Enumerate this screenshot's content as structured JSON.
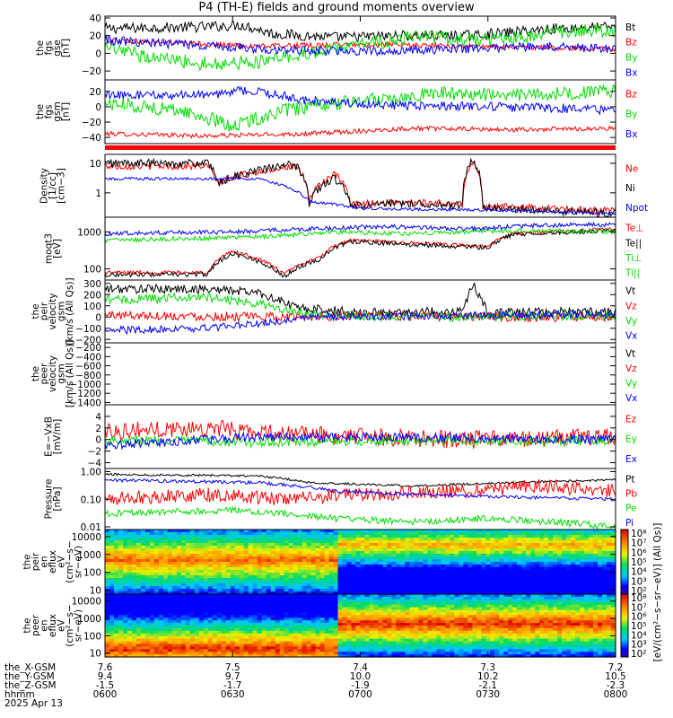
{
  "title": "P4 (TH-E) fields and ground moments overview",
  "colors": {
    "black": "#000000",
    "red": "#ff0000",
    "green": "#00dd00",
    "blue": "#0000ff"
  },
  "chart_data": {
    "type": "multi-panel time series",
    "xaxis": {
      "ticks": [
        "0600",
        "0630",
        "0700",
        "0730",
        "0800"
      ],
      "rows": [
        {
          "label": "the_X-GSM",
          "values": [
            "7.6",
            "7.5",
            "7.4",
            "7.3",
            "7.2"
          ]
        },
        {
          "label": "the_Y-GSM",
          "values": [
            "9.4",
            "9.7",
            "10.0",
            "10.2",
            "10.5"
          ]
        },
        {
          "label": "the_Z-GSM",
          "values": [
            "-1.5",
            "-1.7",
            "-1.9",
            "-2.1",
            "-2.3"
          ]
        },
        {
          "label": "hhmm",
          "values": [
            "0600",
            "0630",
            "0700",
            "0730",
            "0800"
          ]
        }
      ],
      "date": "2025 Apr 13"
    },
    "panels": [
      {
        "ylabel": [
          "the",
          "fgs",
          "gse",
          "[nT]"
        ],
        "ylim": [
          -30,
          42
        ],
        "scale": "linear",
        "ticks": [
          "40",
          "20",
          "0",
          "−20"
        ],
        "tick_values": [
          40,
          20,
          0,
          -20
        ],
        "legend": [
          {
            "text": "Bt",
            "color": "black"
          },
          {
            "text": "Bz",
            "color": "red"
          },
          {
            "text": "By",
            "color": "green"
          },
          {
            "text": "Bx",
            "color": "blue"
          }
        ]
      },
      {
        "ylabel": [
          "the",
          "fgs",
          "gsm",
          "[nT]"
        ],
        "ylim": [
          -48,
          35
        ],
        "scale": "linear",
        "ticks": [
          "20",
          "0",
          "−20",
          "−40"
        ],
        "tick_values": [
          20,
          0,
          -20,
          -40
        ],
        "legend": [
          {
            "text": "Bz",
            "color": "red"
          },
          {
            "text": "By",
            "color": "green"
          },
          {
            "text": "Bx",
            "color": "blue"
          }
        ]
      },
      {
        "ylabel": [
          "Density",
          "[1/cc]",
          "[cm−3]"
        ],
        "ylim": [
          0.15,
          20
        ],
        "scale": "log",
        "ticks": [
          "10",
          "1"
        ],
        "tick_values": [
          10,
          1
        ],
        "legend": [
          {
            "text": "Ne",
            "color": "red"
          },
          {
            "text": "Ni",
            "color": "black"
          },
          {
            "text": "Npot",
            "color": "blue"
          }
        ]
      },
      {
        "ylabel": [
          "moqt3",
          "[eV]"
        ],
        "ylim": [
          50,
          2500
        ],
        "scale": "log",
        "ticks": [
          "1000",
          "100"
        ],
        "tick_values": [
          1000,
          100
        ],
        "legend": [
          {
            "text": "Te⊥",
            "color": "red"
          },
          {
            "text": "Te||",
            "color": "black"
          },
          {
            "text": "Ti⊥",
            "color": "green"
          },
          {
            "text": "Ti||",
            "color": "green"
          }
        ]
      },
      {
        "ylabel": [
          "the",
          "peir",
          "velocity",
          "gsm",
          "[km/s (All Qs)]"
        ],
        "ylim": [
          -230,
          330
        ],
        "scale": "linear",
        "ticks": [
          "300",
          "200",
          "100",
          "0",
          "−100",
          "−200"
        ],
        "tick_values": [
          300,
          200,
          100,
          0,
          -100,
          -200
        ],
        "legend": [
          {
            "text": "Vt",
            "color": "black"
          },
          {
            "text": "Vz",
            "color": "red"
          },
          {
            "text": "Vy",
            "color": "green"
          },
          {
            "text": "Vx",
            "color": "blue"
          }
        ]
      },
      {
        "ylabel": [
          "the",
          "peer",
          "velocity",
          "gsm",
          "[km/s (All Qs)]"
        ],
        "ylim": [
          -1450,
          -100
        ],
        "scale": "linear",
        "ticks": [
          "−200",
          "−400",
          "−600",
          "−800",
          "−1000",
          "−1200",
          "−1400"
        ],
        "tick_values": [
          -200,
          -400,
          -600,
          -800,
          -1000,
          -1200,
          -1400
        ],
        "legend": [
          {
            "text": "Vt",
            "color": "black"
          },
          {
            "text": "Vz",
            "color": "red"
          },
          {
            "text": "Vy",
            "color": "green"
          },
          {
            "text": "Vx",
            "color": "blue"
          }
        ]
      },
      {
        "ylabel": [
          "E=−VxB",
          "[mV/m]"
        ],
        "ylim": [
          -5,
          6
        ],
        "scale": "linear",
        "ticks": [
          "4",
          "2",
          "0",
          "−2",
          "−4"
        ],
        "tick_values": [
          4,
          2,
          0,
          -2,
          -4
        ],
        "legend": [
          {
            "text": "Ez",
            "color": "red"
          },
          {
            "text": "Ey",
            "color": "green"
          },
          {
            "text": "Ex",
            "color": "blue"
          }
        ]
      },
      {
        "ylabel": [
          "Pressure",
          "[nPa]"
        ],
        "ylim": [
          0.008,
          1.3
        ],
        "scale": "log",
        "ticks": [
          "1.00",
          "0.10",
          "0.01"
        ],
        "tick_values": [
          1,
          0.1,
          0.01
        ],
        "legend": [
          {
            "text": "Pt",
            "color": "black"
          },
          {
            "text": "Pb",
            "color": "red"
          },
          {
            "text": "Pe",
            "color": "green"
          },
          {
            "text": "Pi",
            "color": "blue"
          }
        ]
      },
      {
        "ylabel": [
          "the",
          "peir",
          "en",
          "eflux",
          "eV",
          "(cm²−s−",
          "sr−eV)"
        ],
        "ylim": [
          6,
          25000
        ],
        "scale": "log",
        "ticks": [
          "10000",
          "1000",
          "100",
          "10"
        ],
        "tick_values": [
          10000,
          1000,
          100,
          10
        ],
        "colorbar_ticks": [
          "10⁸",
          "10⁷",
          "10⁶",
          "10⁵",
          "10⁴",
          "10³",
          "10²"
        ]
      },
      {
        "ylabel": [
          "the",
          "peer",
          "en",
          "eflux",
          "eV",
          "(cm²−s−",
          "sr−eV)"
        ],
        "ylim": [
          6,
          25000
        ],
        "scale": "log",
        "ticks": [
          "10000",
          "1000",
          "100",
          "10"
        ],
        "tick_values": [
          10000,
          1000,
          100,
          10
        ],
        "colorbar_ticks": [
          "10⁸",
          "10⁷",
          "10⁶",
          "10⁵",
          "10⁴",
          "10³",
          "10²"
        ]
      }
    ],
    "colorbar_label": "[eV/(cm²−s−sr−eV)] (All Qs)]"
  }
}
